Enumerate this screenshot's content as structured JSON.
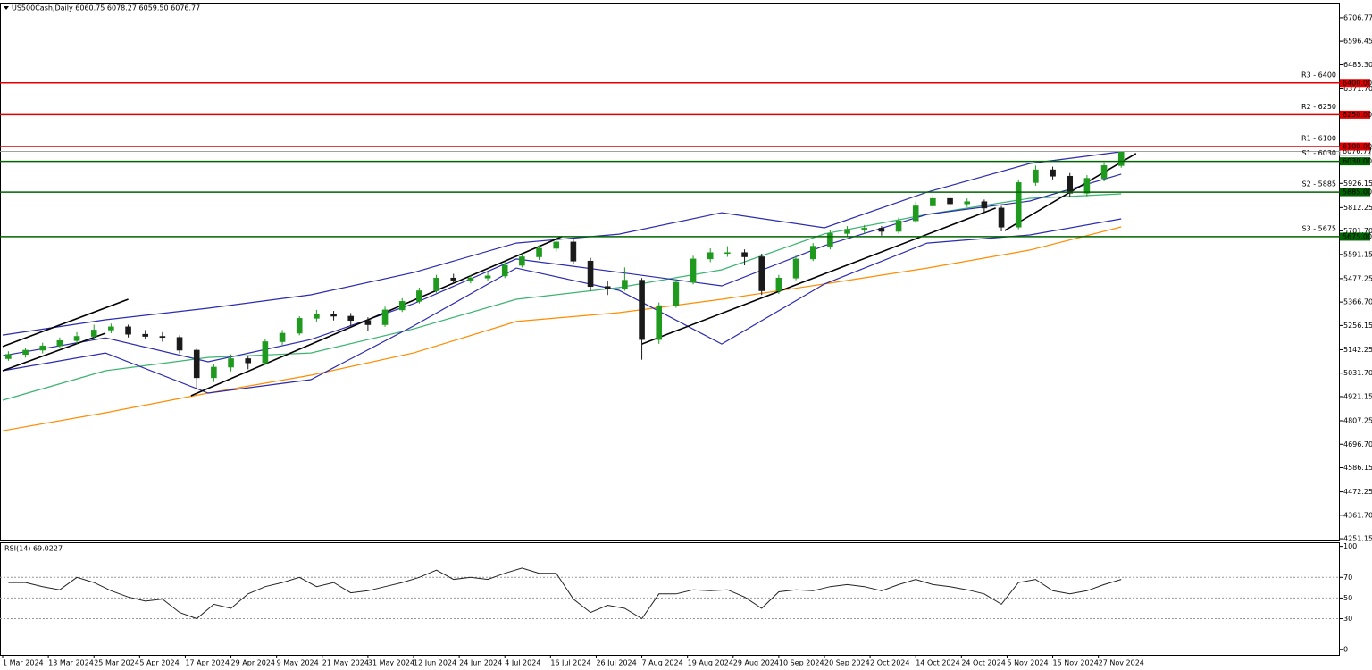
{
  "chart_data": [
    {
      "type": "candlestick",
      "title": "US500Cash,Daily  6060.75 6078.27 6059.50 6076.77",
      "xlim": [
        0,
        234
      ],
      "ylim": [
        4243,
        6778
      ],
      "yticks": [
        6706.77,
        6596.45,
        {
          "value": 6485.3,
          "label": "6485.30"
        },
        {
          "value": 6371.7,
          "label": "6371.70"
        },
        5926.15,
        5812.25,
        {
          "value": 5701.7,
          "label": "5701.70"
        },
        5591.15,
        5477.25,
        {
          "value": 5366.7,
          "label": "5366.70"
        },
        5256.15,
        5142.25,
        {
          "value": 5031.7,
          "label": "5031.70"
        },
        4921.15,
        4807.25,
        {
          "value": 4696.7,
          "label": "4696.70"
        },
        4586.15,
        4472.25,
        {
          "value": 4361.7,
          "label": "4361.70"
        },
        4251.15
      ],
      "up_color": "#1f9a1f",
      "down_color": "#1a1a1a",
      "x": [
        1,
        4,
        7,
        10,
        13,
        16,
        19,
        22,
        25,
        28,
        31,
        34,
        37,
        40,
        43,
        46,
        49,
        52,
        55,
        58,
        61,
        64,
        67,
        70,
        73,
        76,
        79,
        82,
        85,
        88,
        91,
        94,
        97,
        100,
        103,
        106,
        109,
        112,
        115,
        118,
        121,
        124,
        127,
        130,
        133,
        136,
        139,
        142,
        145,
        148,
        151,
        154,
        157,
        160,
        163,
        166,
        169,
        172,
        175,
        178,
        181,
        184,
        187,
        190,
        193,
        196
      ],
      "ohlc": [
        [
          5100,
          5135,
          5090,
          5120
        ],
        [
          5120,
          5150,
          5105,
          5140
        ],
        [
          5140,
          5175,
          5125,
          5160
        ],
        [
          5160,
          5200,
          5150,
          5185
        ],
        [
          5185,
          5225,
          5170,
          5205
        ],
        [
          5205,
          5260,
          5195,
          5235
        ],
        [
          5235,
          5265,
          5220,
          5250
        ],
        [
          5250,
          5260,
          5200,
          5215
        ],
        [
          5215,
          5235,
          5190,
          5205
        ],
        [
          5205,
          5225,
          5180,
          5200
        ],
        [
          5200,
          5210,
          5125,
          5140
        ],
        [
          5140,
          5150,
          4960,
          5010
        ],
        [
          5010,
          5075,
          4990,
          5060
        ],
        [
          5060,
          5120,
          5040,
          5100
        ],
        [
          5100,
          5115,
          5050,
          5080
        ],
        [
          5080,
          5195,
          5070,
          5180
        ],
        [
          5180,
          5235,
          5165,
          5220
        ],
        [
          5220,
          5300,
          5210,
          5290
        ],
        [
          5290,
          5330,
          5275,
          5310
        ],
        [
          5310,
          5325,
          5280,
          5300
        ],
        [
          5300,
          5315,
          5255,
          5280
        ],
        [
          5280,
          5295,
          5230,
          5260
        ],
        [
          5260,
          5345,
          5250,
          5330
        ],
        [
          5330,
          5385,
          5320,
          5370
        ],
        [
          5370,
          5435,
          5360,
          5420
        ],
        [
          5420,
          5495,
          5410,
          5480
        ],
        [
          5480,
          5500,
          5455,
          5470
        ],
        [
          5470,
          5495,
          5455,
          5480
        ],
        [
          5480,
          5510,
          5465,
          5490
        ],
        [
          5490,
          5555,
          5480,
          5540
        ],
        [
          5540,
          5595,
          5530,
          5580
        ],
        [
          5580,
          5635,
          5565,
          5620
        ],
        [
          5620,
          5675,
          5605,
          5650
        ],
        [
          5650,
          5665,
          5545,
          5560
        ],
        [
          5560,
          5575,
          5420,
          5440
        ],
        [
          5440,
          5465,
          5400,
          5430
        ],
        [
          5430,
          5530,
          5420,
          5470
        ],
        [
          5470,
          5480,
          5095,
          5190
        ],
        [
          5190,
          5365,
          5170,
          5350
        ],
        [
          5350,
          5475,
          5340,
          5460
        ],
        [
          5460,
          5585,
          5450,
          5570
        ],
        [
          5570,
          5620,
          5555,
          5600
        ],
        [
          5600,
          5630,
          5580,
          5600
        ],
        [
          5600,
          5615,
          5540,
          5580
        ],
        [
          5580,
          5595,
          5400,
          5420
        ],
        [
          5420,
          5495,
          5405,
          5480
        ],
        [
          5480,
          5585,
          5470,
          5570
        ],
        [
          5570,
          5645,
          5560,
          5630
        ],
        [
          5630,
          5705,
          5615,
          5690
        ],
        [
          5690,
          5725,
          5675,
          5710
        ],
        [
          5710,
          5730,
          5690,
          5715
        ],
        [
          5715,
          5725,
          5680,
          5700
        ],
        [
          5700,
          5765,
          5690,
          5750
        ],
        [
          5750,
          5840,
          5740,
          5820
        ],
        [
          5820,
          5875,
          5805,
          5855
        ],
        [
          5855,
          5870,
          5810,
          5830
        ],
        [
          5830,
          5855,
          5815,
          5840
        ],
        [
          5840,
          5850,
          5790,
          5810
        ],
        [
          5810,
          5820,
          5700,
          5720
        ],
        [
          5720,
          5945,
          5710,
          5930
        ],
        [
          5930,
          6010,
          5915,
          5990
        ],
        [
          5990,
          6005,
          5945,
          5960
        ],
        [
          5960,
          5975,
          5860,
          5880
        ],
        [
          5880,
          5965,
          5865,
          5950
        ],
        [
          5950,
          6025,
          5935,
          6010
        ],
        [
          6010,
          6078,
          6000,
          6076
        ]
      ],
      "overlays": [
        {
          "color": "#ff8c00",
          "x": [
            0,
            18,
            36,
            54,
            72,
            90,
            108,
            126,
            144,
            162,
            180,
            196
          ],
          "values": [
            4760,
            4845,
            4938,
            5022,
            5127,
            5275,
            5317,
            5380,
            5452,
            5527,
            5612,
            5721
          ]
        },
        {
          "color": "#3cb371",
          "x": [
            0,
            18,
            36,
            54,
            72,
            90,
            108,
            126,
            144,
            162,
            180,
            196
          ],
          "values": [
            4904,
            5043,
            5106,
            5127,
            5240,
            5380,
            5435,
            5519,
            5688,
            5780,
            5856,
            5877
          ]
        },
        {
          "color": "#2b2bb0",
          "x": [
            0,
            18,
            36,
            54,
            72,
            90,
            108,
            126,
            144,
            162,
            180,
            196
          ],
          "values": [
            5211,
            5283,
            5338,
            5401,
            5506,
            5645,
            5687,
            5788,
            5717,
            5885,
            6020,
            6075
          ]
        },
        {
          "color": "#2b2bb0",
          "x": [
            0,
            18,
            36,
            54,
            72,
            90,
            108,
            126,
            144,
            162,
            180,
            196
          ],
          "values": [
            5114,
            5198,
            5085,
            5190,
            5359,
            5570,
            5507,
            5443,
            5633,
            5780,
            5843,
            5970
          ]
        },
        {
          "color": "#2b2bb0",
          "x": [
            0,
            18,
            36,
            54,
            72,
            90,
            108,
            126,
            144,
            162,
            180,
            196
          ],
          "values": [
            5043,
            5127,
            4938,
            5001,
            5254,
            5527,
            5422,
            5169,
            5452,
            5645,
            5683,
            5759
          ]
        }
      ],
      "trendlines": [
        {
          "x": [
            0,
            22
          ],
          "values": [
            5157,
            5380
          ]
        },
        {
          "x": [
            0,
            18
          ],
          "values": [
            5043,
            5220
          ]
        },
        {
          "x": [
            33,
            98
          ],
          "values": [
            4925,
            5675
          ]
        },
        {
          "x": [
            112,
            174
          ],
          "values": [
            5169,
            5810
          ]
        },
        {
          "x": [
            175.6,
            198.6
          ],
          "values": [
            5704,
            6067
          ]
        }
      ],
      "levels": [
        {
          "label": "R3 - 6400",
          "value": 6400,
          "tag": "6400.00",
          "color": "#e00000"
        },
        {
          "label": "R2 - 6250",
          "value": 6250,
          "tag": "6250.00",
          "color": "#e00000"
        },
        {
          "label": "R1 - 6100",
          "value": 6100,
          "tag": "6100.00",
          "color": "#e00000"
        },
        {
          "label": "S1 - 6030",
          "value": 6030,
          "tag": "6030.00",
          "color": "#006400"
        },
        {
          "label": "S2 - 5885",
          "value": 5885,
          "tag": "5885.00",
          "color": "#006400"
        },
        {
          "label": "S3 - 5675",
          "value": 5675,
          "tag": "5675.00",
          "color": "#006400"
        }
      ],
      "last_price": {
        "value": 6076.77,
        "tag": "6076.77",
        "color": "#a0a0a0"
      }
    },
    {
      "type": "line",
      "title": "RSI(14) 69.0227",
      "color": "#222222",
      "xlim": [
        0,
        234
      ],
      "ylim": [
        -5,
        104
      ],
      "yticks": [
        100,
        70,
        50,
        30,
        0
      ],
      "levels": [
        70,
        50,
        30
      ],
      "x": [
        1,
        4,
        7,
        10,
        13,
        16,
        19,
        22,
        25,
        28,
        31,
        34,
        37,
        40,
        43,
        46,
        49,
        52,
        55,
        58,
        61,
        64,
        67,
        70,
        73,
        76,
        79,
        82,
        85,
        88,
        91,
        94,
        97,
        100,
        103,
        106,
        109,
        112,
        115,
        118,
        121,
        124,
        127,
        130,
        133,
        136,
        139,
        142,
        145,
        148,
        151,
        154,
        157,
        160,
        163,
        166,
        169,
        172,
        175,
        178,
        181,
        184,
        187,
        190,
        193,
        196
      ],
      "values": [
        65,
        65,
        61,
        58,
        70,
        65,
        57,
        51,
        47,
        49,
        36,
        30,
        44,
        40,
        54,
        61,
        65,
        70,
        61,
        65,
        55,
        57,
        61,
        65,
        70,
        77,
        68,
        70,
        68,
        74,
        79,
        74,
        74,
        49,
        36,
        43,
        40,
        30,
        54,
        54,
        58,
        57,
        58,
        51,
        40,
        56,
        58,
        57,
        61,
        63,
        61,
        57,
        63,
        68,
        63,
        61,
        58,
        54,
        44,
        65,
        68,
        57,
        54,
        57,
        63,
        68
      ],
      "xticks": [
        {
          "value": 0,
          "label": "1 Mar 2024"
        },
        {
          "value": 8,
          "label": "13 Mar 2024"
        },
        {
          "value": 16,
          "label": "25 Mar 2024"
        },
        {
          "value": 24,
          "label": "5 Apr 2024"
        },
        {
          "value": 32,
          "label": "17 Apr 2024"
        },
        {
          "value": 40,
          "label": "29 Apr 2024"
        },
        {
          "value": 48,
          "label": "9 May 2024"
        },
        {
          "value": 56,
          "label": "21 May 2024"
        },
        {
          "value": 64,
          "label": "31 May 2024"
        },
        {
          "value": 72,
          "label": "12 Jun 2024"
        },
        {
          "value": 80,
          "label": "24 Jun 2024"
        },
        {
          "value": 88,
          "label": "4 Jul 2024"
        },
        {
          "value": 96,
          "label": "16 Jul 2024"
        },
        {
          "value": 104,
          "label": "26 Jul 2024"
        },
        {
          "value": 112,
          "label": "7 Aug 2024"
        },
        {
          "value": 120,
          "label": "19 Aug 2024"
        },
        {
          "value": 128,
          "label": "29 Aug 2024"
        },
        {
          "value": 136,
          "label": "10 Sep 2024"
        },
        {
          "value": 144,
          "label": "20 Sep 2024"
        },
        {
          "value": 152,
          "label": "2 Oct 2024"
        },
        {
          "value": 160,
          "label": "14 Oct 2024"
        },
        {
          "value": 168,
          "label": "24 Oct 2024"
        },
        {
          "value": 176,
          "label": "5 Nov 2024"
        },
        {
          "value": 184,
          "label": "15 Nov 2024"
        },
        {
          "value": 192,
          "label": "27 Nov 2024"
        }
      ]
    }
  ]
}
